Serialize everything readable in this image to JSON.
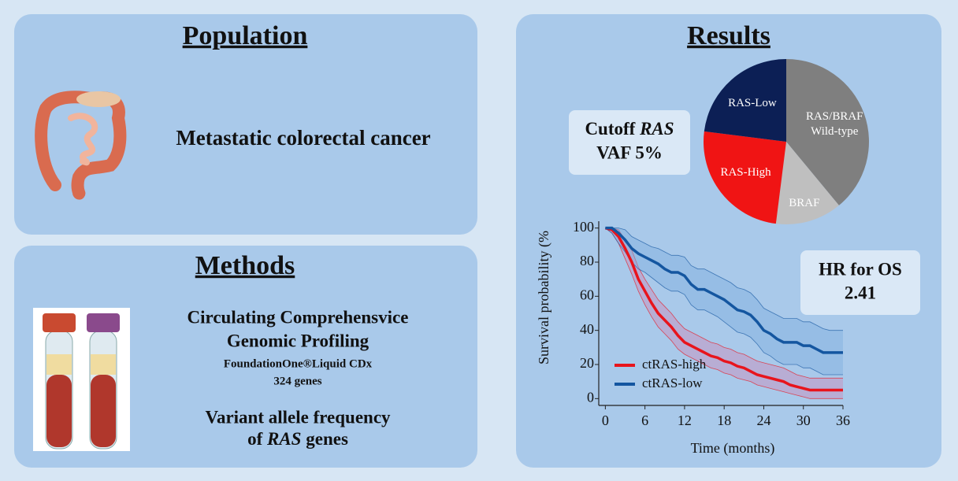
{
  "population": {
    "title": "Population",
    "text": "Metastatic colorectal cancer"
  },
  "methods": {
    "title": "Methods",
    "line1": "Circulating Comprehensvice",
    "line2": "Genomic Profiling",
    "assay": "FoundationOne®Liquid CDx",
    "genes": "324 genes",
    "vaf1": "Variant allele frequency",
    "vaf2_pre": "of",
    "vaf2_gene": "RAS",
    "vaf2_post": "genes"
  },
  "results": {
    "title": "Results",
    "cutoff": {
      "pre": "Cutoff",
      "gene": "RAS",
      "line2": "VAF 5%"
    },
    "hr": {
      "label": "HR for OS",
      "value": 2.41
    }
  },
  "chart_data": [
    {
      "type": "pie",
      "categories": [
        "RAS/BRAF Wild-type",
        "BRAF",
        "RAS-High",
        "RAS-Low"
      ],
      "values": [
        39,
        13,
        25,
        23
      ],
      "colors": [
        "#7f7f7f",
        "#bfbfbf",
        "#f01414",
        "#0c1f55"
      ]
    },
    {
      "type": "line",
      "xlabel": "Time (months)",
      "ylabel": "Survival probability (%",
      "x": [
        0,
        1,
        2,
        3,
        4,
        5,
        6,
        7,
        8,
        9,
        10,
        11,
        12,
        13,
        14,
        15,
        16,
        17,
        18,
        19,
        20,
        21,
        22,
        23,
        24,
        25,
        26,
        27,
        28,
        29,
        30,
        31,
        32,
        33,
        34,
        35,
        36
      ],
      "xlim": [
        -1,
        36
      ],
      "xticks": [
        0,
        6,
        12,
        18,
        24,
        30,
        36
      ],
      "ylim": [
        -4,
        104
      ],
      "yticks": [
        0,
        20,
        40,
        60,
        80,
        100
      ],
      "series": [
        {
          "name": "ctRAS-high",
          "color": "#e8141c",
          "band_color": "#c98bbb",
          "values": [
            100,
            99,
            95,
            88,
            80,
            70,
            63,
            56,
            50,
            46,
            42,
            37,
            33,
            31,
            29,
            27,
            25,
            24,
            22,
            21,
            19,
            18,
            16,
            14,
            13,
            12,
            11,
            10,
            8,
            7,
            6,
            5,
            5,
            5,
            5,
            5,
            5
          ],
          "lower": [
            100,
            97,
            91,
            82,
            73,
            63,
            55,
            48,
            42,
            38,
            34,
            29,
            26,
            24,
            22,
            20,
            18,
            17,
            15,
            14,
            12,
            11,
            10,
            8,
            7,
            6,
            5,
            4,
            3,
            2,
            1,
            0,
            0,
            0,
            0,
            0,
            0
          ],
          "upper": [
            100,
            100,
            99,
            93,
            87,
            77,
            70,
            64,
            58,
            54,
            50,
            45,
            41,
            39,
            37,
            35,
            33,
            32,
            30,
            29,
            27,
            26,
            24,
            22,
            21,
            20,
            19,
            18,
            16,
            14,
            13,
            12,
            12,
            12,
            12,
            12,
            12
          ]
        },
        {
          "name": "ctRAS-low",
          "color": "#1456a0",
          "band_color": "#7fb0e0",
          "values": [
            100,
            100,
            97,
            93,
            88,
            85,
            83,
            81,
            79,
            76,
            74,
            74,
            72,
            67,
            64,
            64,
            62,
            60,
            58,
            55,
            52,
            51,
            49,
            45,
            40,
            38,
            35,
            33,
            33,
            33,
            31,
            31,
            29,
            27,
            27,
            27,
            27
          ],
          "lower": [
            100,
            97,
            91,
            86,
            80,
            76,
            74,
            71,
            68,
            65,
            63,
            63,
            61,
            55,
            52,
            52,
            50,
            48,
            45,
            42,
            39,
            38,
            36,
            32,
            27,
            25,
            22,
            20,
            20,
            20,
            18,
            18,
            16,
            14,
            14,
            14,
            14
          ],
          "upper": [
            100,
            100,
            100,
            99,
            95,
            93,
            91,
            89,
            88,
            86,
            84,
            84,
            83,
            78,
            76,
            76,
            74,
            72,
            70,
            68,
            65,
            64,
            62,
            58,
            53,
            51,
            49,
            47,
            47,
            47,
            45,
            45,
            43,
            41,
            40,
            40,
            40
          ]
        }
      ]
    }
  ]
}
